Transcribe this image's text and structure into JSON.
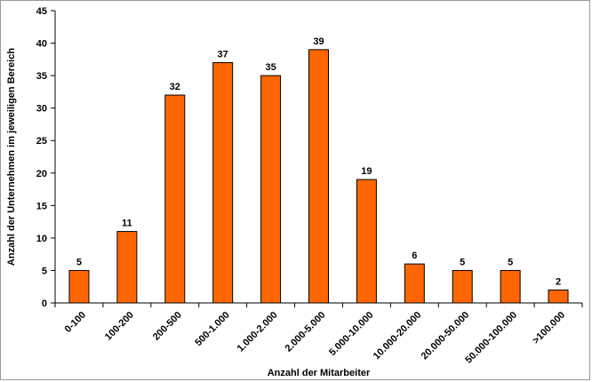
{
  "chart_data": {
    "type": "bar",
    "categories": [
      "0-100",
      "100-200",
      "200-500",
      "500-1.000",
      "1.000-2.000",
      "2.000-5.000",
      "5.000-10.000",
      "10.000-20.000",
      "20.000-50.000",
      "50.000-100.000",
      ">100.000"
    ],
    "values": [
      5,
      11,
      32,
      37,
      35,
      39,
      19,
      6,
      5,
      5,
      2
    ],
    "title": "",
    "xlabel": "Anzahl der Mitarbeiter",
    "ylabel": "Anzahl der Unternehmen im jeweiligen Bereich",
    "ylim": [
      0,
      45
    ],
    "yticks": [
      0,
      5,
      10,
      15,
      20,
      25,
      30,
      35,
      40,
      45
    ],
    "grid": false,
    "legend": "none",
    "colors": {
      "bar": "#ff6600",
      "bar_stroke": "#000000",
      "axis": "#000000"
    }
  }
}
